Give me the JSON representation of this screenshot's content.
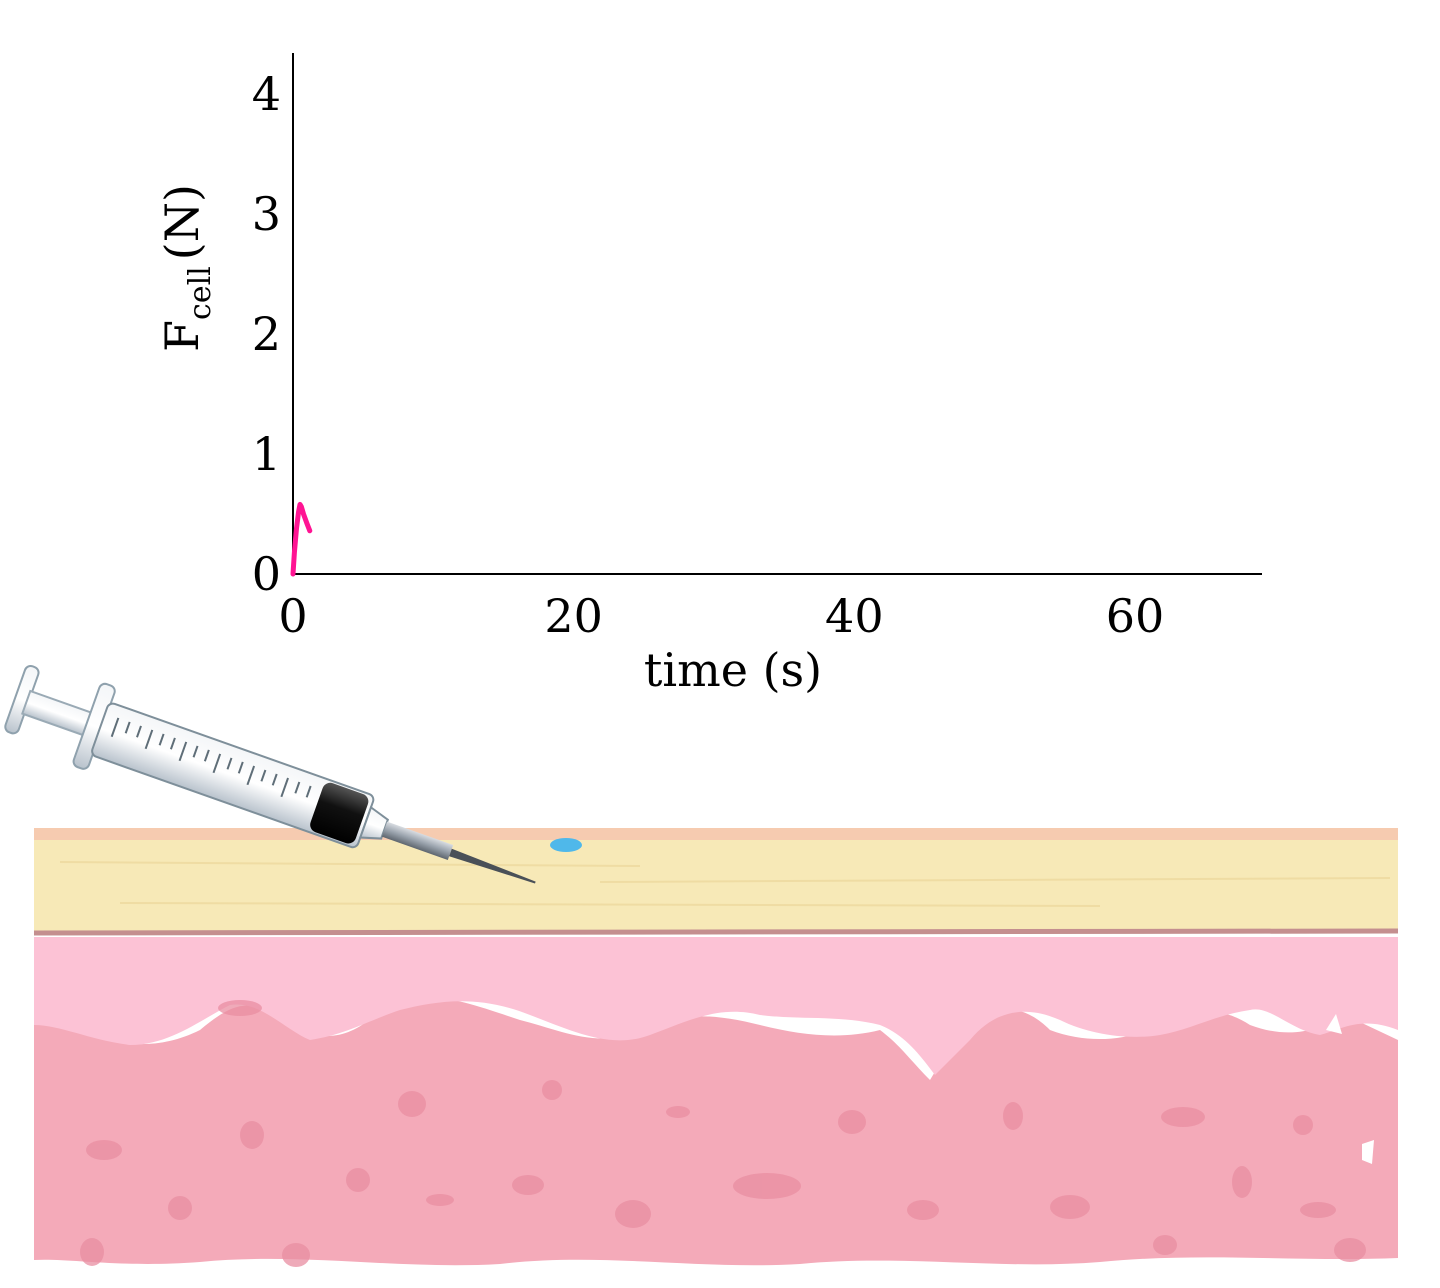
{
  "chart_data": {
    "type": "line",
    "xlabel": "time (s)",
    "ylabel": {
      "main": "F",
      "subscript": "cell",
      "unit": "(N)"
    },
    "xlim": [
      0,
      69
    ],
    "ylim": [
      0,
      4.3
    ],
    "xticks": [
      0,
      20,
      40,
      60
    ],
    "yticks": [
      0,
      1,
      2,
      3,
      4
    ],
    "grid": false,
    "series": [
      {
        "color": "#ff1493",
        "x": [
          0.0,
          0.1,
          0.25,
          0.4,
          0.5,
          0.6,
          0.75,
          1.0,
          1.2
        ],
        "y": [
          0.0,
          0.18,
          0.38,
          0.52,
          0.58,
          0.56,
          0.5,
          0.42,
          0.36
        ]
      }
    ]
  },
  "illustration": {
    "description_icons": [
      "syringe-icon",
      "skin-tissue-layers"
    ],
    "colors": {
      "epidermis": "#f7e8b5",
      "epidermis_top": "#f6c9ad",
      "dermis": "#fcc1d4",
      "tissue": "#f3a9b8",
      "droplet": "#4fb8ea"
    }
  }
}
